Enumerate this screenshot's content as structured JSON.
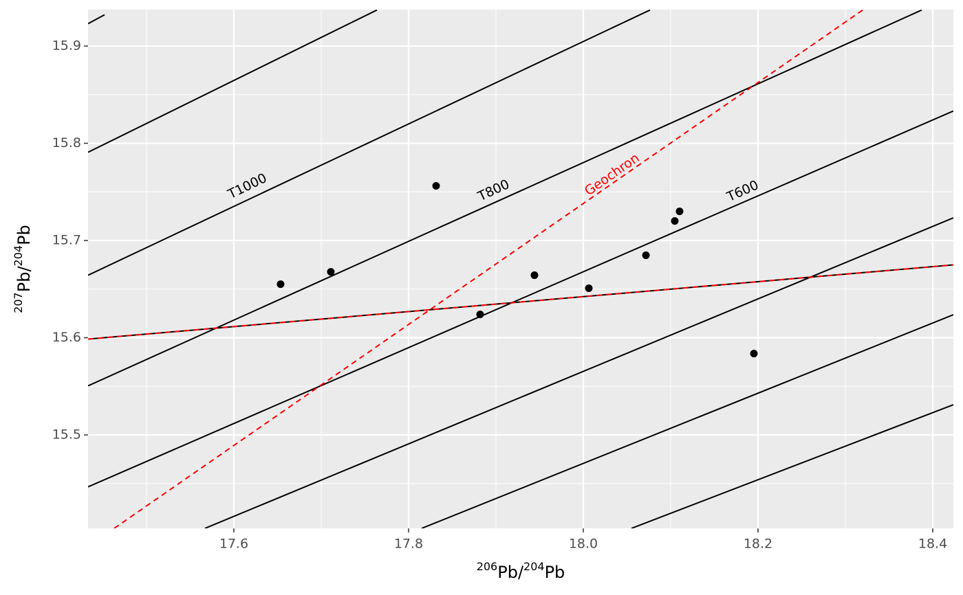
{
  "chart_data": {
    "type": "scatter",
    "xlabel": [
      {
        "text": "206",
        "sup": true
      },
      {
        "text": "Pb/",
        "sup": false
      },
      {
        "text": "204",
        "sup": true
      },
      {
        "text": "Pb",
        "sup": false
      }
    ],
    "ylabel": [
      {
        "text": "207",
        "sup": true
      },
      {
        "text": "Pb/",
        "sup": false
      },
      {
        "text": "204",
        "sup": true
      },
      {
        "text": "Pb",
        "sup": false
      }
    ],
    "xlim": [
      17.4331,
      18.4236
    ],
    "ylim": [
      15.4039,
      15.9375
    ],
    "xticks": [
      17.6,
      17.8,
      {
        "value": 18.0,
        "label": "18.0"
      },
      18.2,
      18.4
    ],
    "yticks": [
      15.5,
      15.6,
      15.7,
      15.8,
      15.9
    ],
    "xminor": [
      17.5,
      17.7,
      17.9,
      18.1,
      18.3
    ],
    "yminor": [
      15.45,
      15.55,
      15.65,
      15.75,
      15.85
    ],
    "grid": true,
    "color": "#000000",
    "x": [
      17.6535,
      17.711,
      17.8315,
      17.8819,
      17.9441,
      18.0063,
      18.0717,
      18.1047,
      18.1102,
      18.1953
    ],
    "y": [
      15.6551,
      15.6678,
      15.7562,
      15.624,
      15.6643,
      15.6509,
      15.6848,
      15.7201,
      15.73,
      15.5837
    ],
    "lines": [
      {
        "x": [
          17.4331,
          17.452
        ],
        "y": [
          15.923,
          15.9322
        ],
        "color": "#000000",
        "dash": false
      },
      {
        "x": [
          17.4331,
          17.7638
        ],
        "y": [
          15.7908,
          15.9371
        ],
        "color": "#000000",
        "dash": false
      },
      {
        "x": [
          17.4331,
          18.0764
        ],
        "y": [
          15.6643,
          15.9371
        ],
        "color": "#000000",
        "dash": false
      },
      {
        "x": [
          17.4331,
          18.3874
        ],
        "y": [
          15.5505,
          15.9371
        ],
        "color": "#000000",
        "dash": false
      },
      {
        "x": [
          17.4331,
          18.4236
        ],
        "y": [
          15.4466,
          15.8332
        ],
        "color": "#000000",
        "dash": false
      },
      {
        "x": [
          17.5669,
          18.4236
        ],
        "y": [
          15.4039,
          15.7233
        ],
        "color": "#000000",
        "dash": false
      },
      {
        "x": [
          17.815,
          18.4236
        ],
        "y": [
          15.4039,
          15.6237
        ],
        "color": "#000000",
        "dash": false
      },
      {
        "x": [
          18.0551,
          18.4236
        ],
        "y": [
          15.4039,
          15.5311
        ],
        "color": "#000000",
        "dash": false
      },
      {
        "x": [
          17.4331,
          18.4236
        ],
        "y": [
          15.5986,
          15.6749
        ],
        "color": "#000000",
        "dash": false
      },
      {
        "x": [
          17.4331,
          18.4236
        ],
        "y": [
          15.5986,
          15.6749
        ],
        "color": "#ff0000",
        "dash": true
      },
      {
        "x": [
          17.463,
          18.3205
        ],
        "y": [
          15.4039,
          15.9375
        ],
        "color": "#ff0000",
        "dash": true
      }
    ],
    "annotations": [
      {
        "text": "T1000",
        "x": 17.6157,
        "y": 15.7555,
        "color": "#000000"
      },
      {
        "text": "T800",
        "x": 17.8976,
        "y": 15.7512,
        "color": "#000000"
      },
      {
        "text": "Geochron",
        "x": 18.0331,
        "y": 15.7675,
        "color": "#ff0000"
      },
      {
        "text": "T600",
        "x": 18.1827,
        "y": 15.7505,
        "color": "#000000"
      }
    ]
  }
}
